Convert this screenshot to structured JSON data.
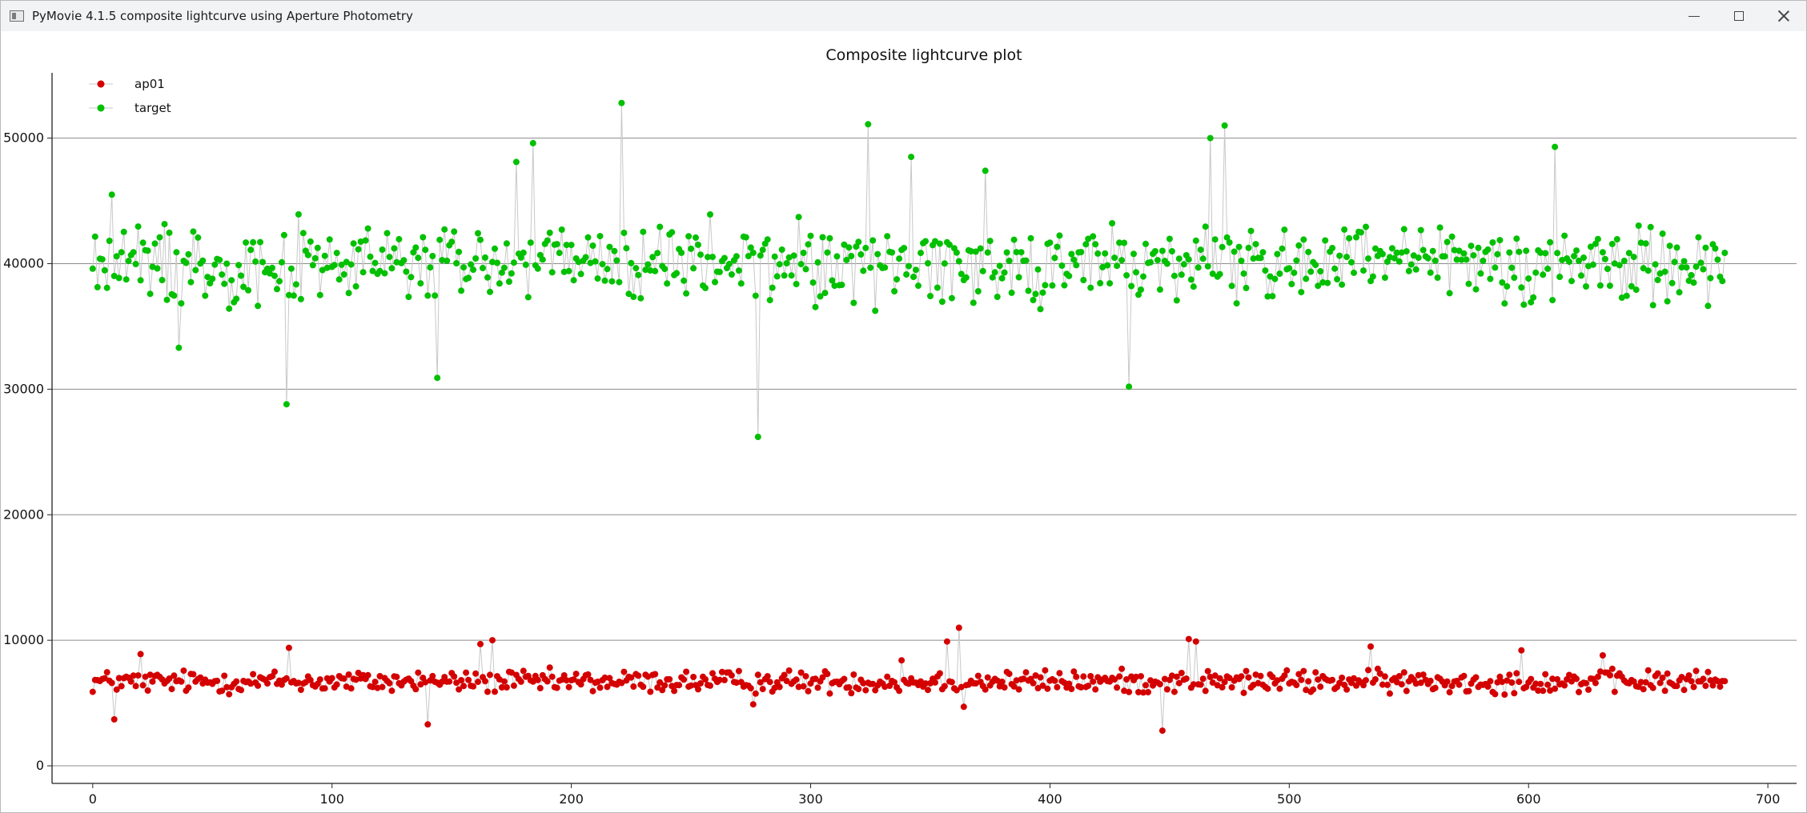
{
  "window": {
    "title": "PyMovie 4.1.5 composite lightcurve using Aperture Photometry",
    "app_icon": "window-app-icon",
    "controls": [
      "minimize-icon",
      "maximize-icon",
      "close-icon"
    ]
  },
  "colors": {
    "ap01": "#d40000",
    "target": "#00c000",
    "connector": "#c8c8c8",
    "grid": "#8c8c8c",
    "axis": "#222222"
  },
  "chart_data": {
    "type": "scatter",
    "title": "Composite lightcurve plot",
    "xlabel": "",
    "ylabel": "",
    "xlim": [
      -17,
      712
    ],
    "ylim": [
      -1400,
      55200
    ],
    "xticks": [
      0,
      100,
      200,
      300,
      400,
      500,
      600,
      700
    ],
    "yticks": [
      0,
      10000,
      20000,
      30000,
      40000,
      50000
    ],
    "grid": "horizontal",
    "legend_position": "top-left",
    "points_connected": true,
    "n_points": 683,
    "series": [
      {
        "name": "ap01",
        "mean": 6700,
        "spread": 1200,
        "outliers": [
          [
            9,
            3700
          ],
          [
            20,
            8900
          ],
          [
            82,
            9400
          ],
          [
            140,
            3300
          ],
          [
            162,
            9700
          ],
          [
            167,
            10000
          ],
          [
            276,
            4900
          ],
          [
            338,
            8400
          ],
          [
            357,
            9900
          ],
          [
            362,
            11000
          ],
          [
            364,
            4700
          ],
          [
            447,
            2800
          ],
          [
            458,
            10100
          ],
          [
            461,
            9900
          ],
          [
            534,
            9500
          ],
          [
            597,
            9200
          ],
          [
            631,
            8800
          ]
        ]
      },
      {
        "name": "target",
        "mean": 40000,
        "spread": 4200,
        "outliers": [
          [
            8,
            45500
          ],
          [
            36,
            33300
          ],
          [
            81,
            28800
          ],
          [
            144,
            30900
          ],
          [
            177,
            48100
          ],
          [
            184,
            49600
          ],
          [
            221,
            52800
          ],
          [
            278,
            26200
          ],
          [
            324,
            51100
          ],
          [
            342,
            48500
          ],
          [
            373,
            47400
          ],
          [
            433,
            30200
          ],
          [
            467,
            50000
          ],
          [
            473,
            51000
          ],
          [
            611,
            49300
          ]
        ]
      }
    ]
  }
}
